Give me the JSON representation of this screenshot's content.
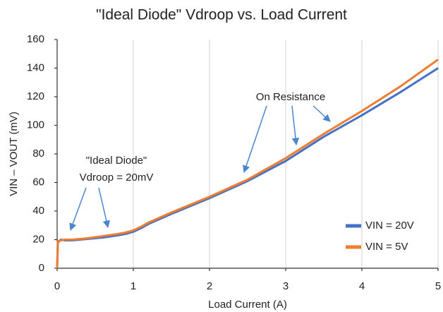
{
  "chart_data": {
    "type": "line",
    "title": "\"Ideal Diode\" Vdroop vs. Load Current",
    "x_label": "Load Current (A)",
    "y_label": "VIN – VOUT (mV)",
    "annotations": [
      "On Resistance",
      "\"Ideal Diode\"",
      "Vdroop = 20mV"
    ],
    "x": [
      0,
      0.01,
      0.05,
      0.1,
      0.2,
      0.4,
      0.6,
      0.8,
      0.9,
      1.0,
      1.1,
      1.2,
      1.5,
      2,
      2.5,
      3,
      3.5,
      4,
      4.5,
      5
    ],
    "series": [
      {
        "name": "VIN = 20V",
        "color": "#4472c4",
        "values": [
          0,
          18,
          20,
          19.5,
          19.5,
          20.5,
          21.5,
          23,
          24,
          25.5,
          28,
          31,
          38,
          49,
          61,
          75,
          92,
          107,
          123,
          140
        ]
      },
      {
        "name": "VIN = 5V",
        "color": "#ed7d31",
        "values": [
          0,
          19,
          19.5,
          20,
          20,
          21,
          22.5,
          24,
          25,
          26.5,
          29,
          32,
          39,
          50,
          62,
          77,
          94,
          110,
          127,
          146
        ]
      }
    ],
    "xlim": [
      0,
      5
    ],
    "xticks": [
      0,
      1,
      2,
      3,
      4,
      5
    ],
    "ylim": [
      0,
      160
    ],
    "yticks": [
      0,
      20,
      40,
      60,
      80,
      100,
      120,
      140,
      160
    ],
    "grid": "x",
    "legend": "lower right"
  }
}
